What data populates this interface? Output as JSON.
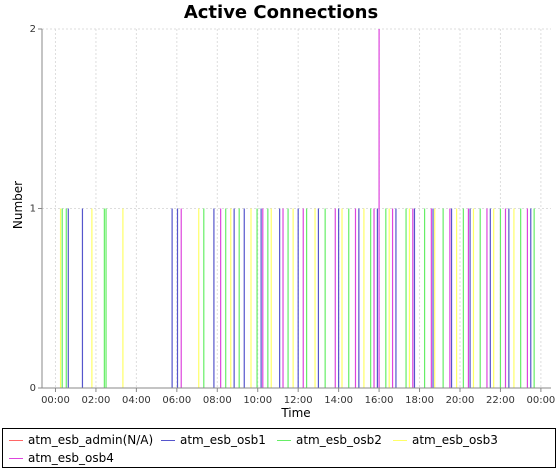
{
  "chart_data": {
    "type": "bar",
    "title": "Active Connections",
    "xlabel": "Time",
    "ylabel": "Number",
    "xlim": [
      -40,
      1470
    ],
    "ylim": [
      0,
      2
    ],
    "x_ticks": [
      "00:00",
      "02:00",
      "04:00",
      "06:00",
      "08:00",
      "10:00",
      "12:00",
      "14:00",
      "16:00",
      "18:00",
      "20:00",
      "22:00",
      "00:00"
    ],
    "x_tick_minutes": [
      0,
      120,
      240,
      360,
      480,
      600,
      720,
      840,
      960,
      1080,
      1200,
      1320,
      1440
    ],
    "y_ticks": [
      0,
      1,
      2
    ],
    "grid": true,
    "legend": "bottom",
    "series": [
      {
        "name": "atm_esb_admin(N/A)",
        "color": "#ff6666",
        "times": [],
        "values": []
      },
      {
        "name": "atm_esb_osb1",
        "color": "#5555cc",
        "times": [
          38,
          80,
          346,
          362,
          470,
          530,
          560,
          610,
          665,
          720,
          780,
          840,
          900,
          955,
          1010,
          1065,
          1120,
          1175,
          1230,
          1290,
          1345,
          1410
        ],
        "values": [
          1,
          1,
          1,
          1,
          1,
          1,
          1,
          1,
          1,
          1,
          1,
          1,
          1,
          1,
          1,
          1,
          1,
          1,
          1,
          1,
          1,
          1
        ]
      },
      {
        "name": "atm_esb_osb2",
        "color": "#66ee66",
        "times": [
          20,
          32,
          145,
          150,
          440,
          505,
          545,
          598,
          630,
          690,
          745,
          800,
          870,
          935,
          980,
          1040,
          1095,
          1150,
          1210,
          1260,
          1320,
          1380,
          1420
        ],
        "values": [
          1,
          1,
          1,
          1,
          1,
          1,
          1,
          1,
          1,
          1,
          1,
          1,
          1,
          1,
          1,
          1,
          1,
          1,
          1,
          1,
          1,
          1,
          1
        ]
      },
      {
        "name": "atm_esb_osb3",
        "color": "#ffff66",
        "times": [
          15,
          108,
          200,
          425,
          520,
          580,
          640,
          705,
          770,
          850,
          915,
          990,
          1050,
          1125,
          1190,
          1240,
          1300,
          1360
        ],
        "values": [
          1,
          1,
          1,
          1,
          1,
          1,
          1,
          1,
          1,
          1,
          1,
          1,
          1,
          1,
          1,
          1,
          1,
          1
        ]
      },
      {
        "name": "atm_esb_osb4",
        "color": "#dd44dd",
        "times": [
          373,
          490,
          615,
          675,
          735,
          830,
          890,
          945,
          960,
          1000,
          1060,
          1115,
          1170,
          1225,
          1280,
          1335,
          1400
        ],
        "values": [
          1,
          1,
          1,
          1,
          1,
          1,
          1,
          1,
          2,
          1,
          1,
          1,
          1,
          1,
          1,
          1,
          1
        ]
      }
    ]
  }
}
